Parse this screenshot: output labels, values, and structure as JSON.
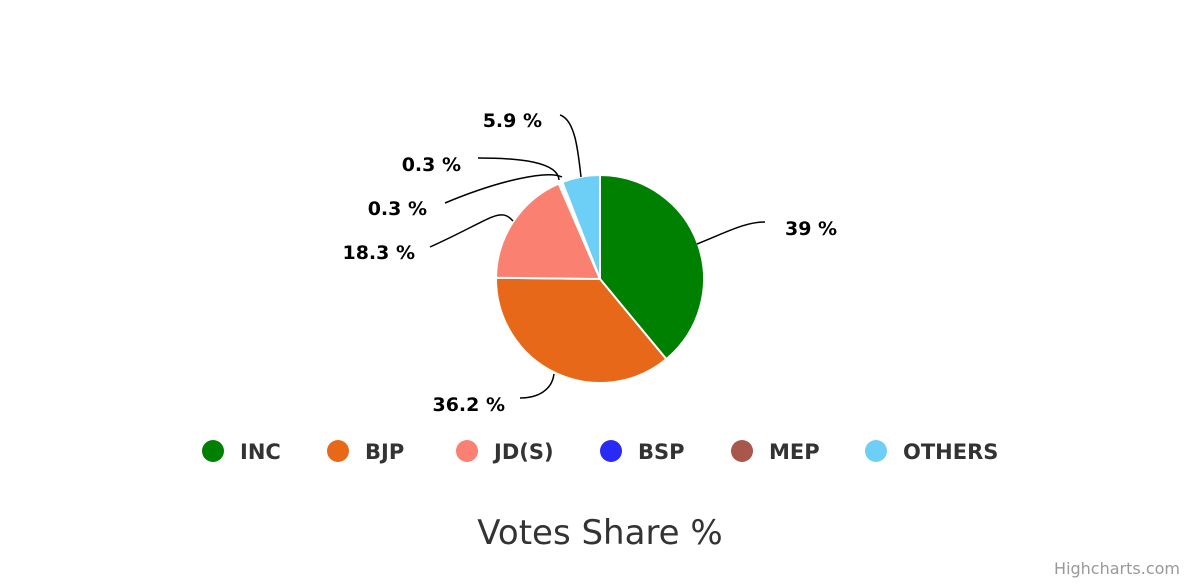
{
  "chart_data": {
    "type": "pie",
    "title": "Votes Share %",
    "slices": [
      {
        "name": "INC",
        "value": 39,
        "label": "39 %",
        "color": "#008000"
      },
      {
        "name": "BJP",
        "value": 36.2,
        "label": "36.2 %",
        "color": "#E8681A"
      },
      {
        "name": "JD(S)",
        "value": 18.3,
        "label": "18.3 %",
        "color": "#FA8072"
      },
      {
        "name": "BSP",
        "value": 0.3,
        "label": "0.3 %",
        "color": "#2A2AF5"
      },
      {
        "name": "MEP",
        "value": 0.3,
        "label": "0.3 %",
        "color": "#A9574D"
      },
      {
        "name": "OTHERS",
        "value": 5.9,
        "label": "5.9 %",
        "color": "#6DCFF6"
      }
    ],
    "legend_position": "bottom"
  },
  "credits": "Highcharts.com"
}
